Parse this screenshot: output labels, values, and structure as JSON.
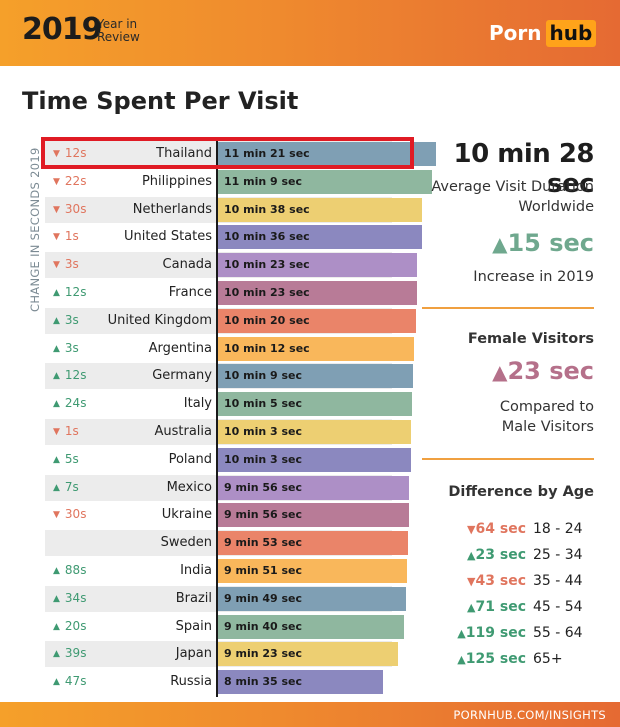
{
  "header": {
    "year": "2019",
    "subtitle_line1": "Year in",
    "subtitle_line2": "Review",
    "logo_part1": "Porn",
    "logo_part2": "hub"
  },
  "title": "Time Spent Per Visit",
  "y_axis_label": "CHANGE IN SECONDS 2019",
  "colors": {
    "down": "#e0755e",
    "up": "#3f9a72",
    "accent": "#f5a02a",
    "highlight": "#e01b24"
  },
  "chart_data": {
    "type": "bar",
    "orientation": "horizontal",
    "unit": "seconds",
    "categories": [
      "Thailand",
      "Philippines",
      "Netherlands",
      "United States",
      "Canada",
      "France",
      "United Kingdom",
      "Argentina",
      "Germany",
      "Italy",
      "Australia",
      "Poland",
      "Mexico",
      "Ukraine",
      "Sweden",
      "India",
      "Brazil",
      "Spain",
      "Japan",
      "Russia"
    ],
    "values": [
      681,
      669,
      638,
      636,
      623,
      623,
      620,
      612,
      609,
      605,
      603,
      603,
      596,
      596,
      593,
      591,
      589,
      580,
      563,
      515
    ],
    "value_labels": [
      "11 min 21 sec",
      "11 min 9 sec",
      "10 min 38 sec",
      "10 min 36 sec",
      "10 min 23 sec",
      "10 min 23 sec",
      "10 min 20 sec",
      "10 min 12 sec",
      "10 min 9 sec",
      "10 min 5 sec",
      "10 min 3 sec",
      "10 min 3 sec",
      "9 min 56 sec",
      "9 min 56 sec",
      "9 min 53 sec",
      "9 min 51 sec",
      "9 min 49 sec",
      "9 min 40 sec",
      "9 min 23 sec",
      "8 min 35 sec"
    ],
    "changes": [
      {
        "dir": "down",
        "text": "12s"
      },
      {
        "dir": "down",
        "text": "22s"
      },
      {
        "dir": "down",
        "text": "30s"
      },
      {
        "dir": "down",
        "text": "1s"
      },
      {
        "dir": "down",
        "text": "3s"
      },
      {
        "dir": "up",
        "text": "12s"
      },
      {
        "dir": "up",
        "text": "3s"
      },
      {
        "dir": "up",
        "text": "3s"
      },
      {
        "dir": "up",
        "text": "12s"
      },
      {
        "dir": "up",
        "text": "24s"
      },
      {
        "dir": "down",
        "text": "1s"
      },
      {
        "dir": "up",
        "text": "5s"
      },
      {
        "dir": "up",
        "text": "7s"
      },
      {
        "dir": "down",
        "text": "30s"
      },
      {
        "dir": "none",
        "text": ""
      },
      {
        "dir": "up",
        "text": "88s"
      },
      {
        "dir": "up",
        "text": "34s"
      },
      {
        "dir": "up",
        "text": "20s"
      },
      {
        "dir": "up",
        "text": "39s"
      },
      {
        "dir": "up",
        "text": "47s"
      }
    ],
    "bar_colors": [
      "#7f9fb4",
      "#8fb79f",
      "#edcf72",
      "#8b88bf",
      "#ad8fc6",
      "#b87b97",
      "#ea8469",
      "#f9b75b",
      "#7f9fb4",
      "#8fb79f",
      "#edcf72",
      "#8b88bf",
      "#ad8fc6",
      "#b87b97",
      "#ea8469",
      "#f9b75b",
      "#7f9fb4",
      "#8fb79f",
      "#edcf72",
      "#8b88bf"
    ],
    "xlim": [
      0,
      700
    ],
    "highlighted_category": "Thailand"
  },
  "stats": {
    "worldwide_value": "10 min 28 sec",
    "worldwide_label1": "Average Visit Duration",
    "worldwide_label2": "Worldwide",
    "increase_value": "15 sec",
    "increase_label": "Increase in 2019",
    "female_heading": "Female Visitors",
    "female_value": "23 sec",
    "female_label1": "Compared to",
    "female_label2": "Male Visitors",
    "age_heading": "Difference by Age",
    "age_rows": [
      {
        "dir": "down",
        "delta": "64 sec",
        "range": "18 - 24"
      },
      {
        "dir": "up",
        "delta": "23 sec",
        "range": "25 - 34"
      },
      {
        "dir": "down",
        "delta": "43 sec",
        "range": "35 - 44"
      },
      {
        "dir": "up",
        "delta": "71 sec",
        "range": "45 - 54"
      },
      {
        "dir": "up",
        "delta": "119 sec",
        "range": "55 - 64"
      },
      {
        "dir": "up",
        "delta": "125 sec",
        "range": "65+"
      }
    ]
  },
  "footer": {
    "url": "PORNHUB.COM/INSIGHTS"
  }
}
